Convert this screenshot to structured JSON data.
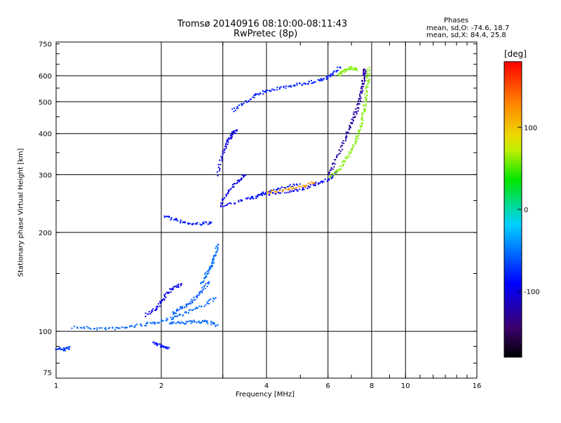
{
  "chart_data": {
    "type": "scatter",
    "title": "Tromsø 20140916 08:10:00-08:11:43",
    "subtitle": "RwPretec (8p)",
    "xlabel": "Frequency [MHz]",
    "ylabel": "Stationary phase Virtual Height [km]",
    "x_scale": "log",
    "y_scale": "log",
    "xlim": [
      1,
      16
    ],
    "ylim": [
      72,
      760
    ],
    "x_ticks": [
      1,
      2,
      4,
      6,
      8,
      10,
      16
    ],
    "x_tick_labels": [
      "1",
      "2",
      "4",
      "6",
      "8",
      "10",
      "16"
    ],
    "x_extra_gridlines": [
      3
    ],
    "y_ticks": [
      75,
      100,
      200,
      300,
      400,
      500,
      600,
      750
    ],
    "y_tick_labels": [
      "75",
      "100",
      "200",
      "300",
      "400",
      "500",
      "600",
      "750"
    ],
    "y_gridlines": [
      100,
      200,
      300,
      400,
      500,
      600
    ],
    "grid": true,
    "info": {
      "heading": "Phases",
      "line_o": "mean, sd,O: -74.6, 18.7",
      "line_x": "mean, sd,X:  84.4, 25.8"
    },
    "colorbar": {
      "label": "[deg]",
      "range": [
        -180,
        180
      ],
      "ticks": [
        100,
        0,
        -100
      ],
      "tick_labels": [
        "100",
        "0",
        "-100"
      ],
      "colormap": "rainbow"
    },
    "series": [
      {
        "traces": [
          {
            "x": [
              1.12,
              1.3,
              1.5,
              1.7,
              1.9,
              2.1,
              2.3,
              2.6,
              2.9
            ],
            "y": [
              103,
              102,
              102,
              104,
              106,
              109,
              113,
              119,
              127
            ],
            "phase": -55
          },
          {
            "x": [
              2.15,
              2.3,
              2.45,
              2.6,
              2.75
            ],
            "y": [
              113,
              118,
              124,
              132,
              142
            ],
            "phase": -60
          },
          {
            "x": [
              2.1,
              2.3,
              2.5,
              2.7,
              2.9
            ],
            "y": [
              106,
              106,
              107,
              107,
              104
            ],
            "phase": -55
          },
          {
            "x": [
              2.6,
              2.7,
              2.8,
              2.85,
              2.9
            ],
            "y": [
              140,
              150,
              160,
              170,
              185
            ],
            "phase": -52
          },
          {
            "x": [
              1.8,
              1.95,
              2.05,
              2.15,
              2.3
            ],
            "y": [
              112,
              118,
              128,
              135,
              140
            ],
            "phase": -95
          },
          {
            "x": [
              1.9,
              2.0,
              2.1
            ],
            "y": [
              92,
              90,
              89
            ],
            "phase": -85
          },
          {
            "x": [
              1.0,
              1.05,
              1.1
            ],
            "y": [
              89,
              88,
              89
            ],
            "phase": -70
          },
          {
            "x": [
              2.05,
              2.2,
              2.4,
              2.6,
              2.8
            ],
            "y": [
              225,
              218,
              213,
              212,
              215
            ],
            "phase": -80
          },
          {
            "x": [
              3.0,
              3.4,
              3.9,
              4.4,
              5.0,
              5.5,
              6.0,
              6.4
            ],
            "y": [
              240,
              250,
              260,
              265,
              270,
              280,
              290,
              305
            ],
            "phase": -95
          },
          {
            "x": [
              3.6,
              4.0,
              4.5,
              5.0
            ],
            "y": [
              255,
              265,
              275,
              280
            ],
            "phase": -80
          },
          {
            "x": [
              4.0,
              4.5,
              5.0,
              5.5
            ],
            "y": [
              265,
              270,
              275,
              285
            ],
            "phase": 120
          },
          {
            "x": [
              6.0,
              6.3,
              6.6,
              6.9,
              7.1,
              7.3,
              7.45,
              7.55,
              7.6,
              7.65
            ],
            "y": [
              300,
              330,
              370,
              410,
              450,
              480,
              520,
              560,
              600,
              630
            ],
            "phase": -125
          },
          {
            "x": [
              6.1,
              6.5,
              6.9,
              7.2,
              7.45,
              7.6,
              7.7,
              7.8,
              7.85
            ],
            "y": [
              295,
              315,
              345,
              380,
              420,
              470,
              520,
              580,
              640
            ],
            "phase": 60
          },
          {
            "x": [
              3.2,
              3.5,
              3.8,
              4.2,
              4.7,
              5.2,
              5.7,
              6.1,
              6.5
            ],
            "y": [
              470,
              500,
              530,
              545,
              560,
              570,
              580,
              600,
              640
            ],
            "phase": -80
          },
          {
            "x": [
              6.4,
              6.7,
              7.0,
              7.3
            ],
            "y": [
              600,
              620,
              635,
              620
            ],
            "phase": 60
          },
          {
            "x": [
              2.9,
              3.0,
              3.1,
              3.2,
              3.3
            ],
            "y": [
              300,
              350,
              380,
              400,
              410
            ],
            "phase": -100
          },
          {
            "x": [
              2.95,
              3.1,
              3.3,
              3.5
            ],
            "y": [
              240,
              265,
              285,
              300
            ],
            "phase": -100
          }
        ]
      }
    ]
  }
}
